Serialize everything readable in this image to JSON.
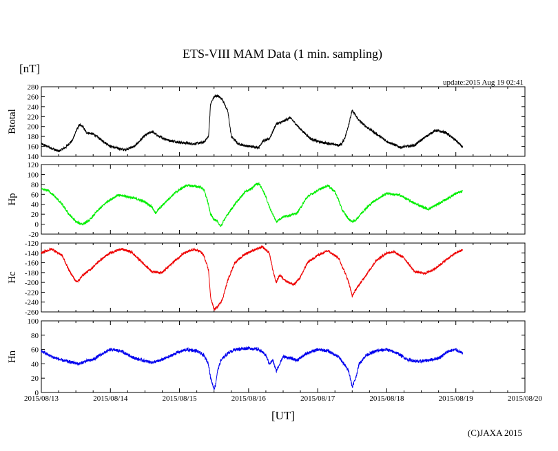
{
  "page": {
    "title": "ETS-VIII MAM Data (1 min. sampling)",
    "units_label": "[nT]",
    "update_text": "update:2015 Aug 19 02:41",
    "x_axis_label": "[UT]",
    "copyright": "(C)JAXA 2015"
  },
  "chart_data": [
    {
      "type": "line",
      "panel": "Btotal",
      "ylabel": "Btotal",
      "color": "#000000",
      "ylim": [
        140,
        280
      ],
      "yticks": [
        140,
        160,
        180,
        200,
        220,
        240,
        260,
        280
      ],
      "noise": 2.5,
      "x_days": [
        0,
        0.15,
        0.25,
        0.35,
        0.45,
        0.5,
        0.55,
        0.6,
        0.65,
        0.75,
        0.9,
        1.0,
        1.2,
        1.35,
        1.5,
        1.6,
        1.7,
        1.85,
        2.0,
        2.2,
        2.35,
        2.42,
        2.45,
        2.5,
        2.55,
        2.62,
        2.7,
        2.75,
        2.85,
        3.0,
        3.15,
        3.2,
        3.3,
        3.4,
        3.5,
        3.6,
        3.75,
        3.9,
        4.0,
        4.1,
        4.2,
        4.3,
        4.35,
        4.4,
        4.45,
        4.5,
        4.55,
        4.6,
        4.7,
        4.85,
        5.0,
        5.2,
        5.4,
        5.55,
        5.7,
        5.85,
        6.0,
        6.1
      ],
      "values": [
        165,
        156,
        150,
        158,
        172,
        190,
        203,
        200,
        188,
        185,
        170,
        160,
        153,
        160,
        182,
        190,
        180,
        172,
        168,
        165,
        168,
        180,
        245,
        260,
        262,
        255,
        230,
        180,
        165,
        160,
        158,
        170,
        175,
        205,
        210,
        218,
        195,
        175,
        170,
        167,
        165,
        162,
        165,
        180,
        205,
        232,
        222,
        212,
        200,
        185,
        170,
        158,
        162,
        178,
        192,
        188,
        172,
        158
      ]
    },
    {
      "type": "line",
      "panel": "Hp",
      "ylabel": "Hp",
      "color": "#00ee00",
      "ylim": [
        -20,
        120
      ],
      "yticks": [
        -20,
        0,
        20,
        40,
        60,
        80,
        100,
        120
      ],
      "noise": 2.5,
      "x_days": [
        0,
        0.1,
        0.2,
        0.3,
        0.4,
        0.5,
        0.55,
        0.6,
        0.7,
        0.8,
        0.95,
        1.1,
        1.2,
        1.35,
        1.5,
        1.6,
        1.65,
        1.7,
        1.8,
        1.95,
        2.1,
        2.3,
        2.35,
        2.4,
        2.45,
        2.5,
        2.55,
        2.6,
        2.65,
        2.7,
        2.8,
        2.95,
        3.05,
        3.1,
        3.15,
        3.2,
        3.25,
        3.3,
        3.4,
        3.5,
        3.6,
        3.7,
        3.85,
        4.0,
        4.15,
        4.25,
        4.3,
        4.35,
        4.45,
        4.5,
        4.55,
        4.65,
        4.8,
        5.0,
        5.2,
        5.4,
        5.6,
        5.8,
        6.0,
        6.1
      ],
      "values": [
        70,
        68,
        55,
        40,
        20,
        5,
        2,
        0,
        8,
        25,
        45,
        58,
        57,
        52,
        45,
        35,
        22,
        30,
        45,
        65,
        78,
        75,
        70,
        50,
        20,
        10,
        5,
        -5,
        10,
        20,
        40,
        65,
        72,
        80,
        82,
        70,
        55,
        35,
        5,
        15,
        18,
        22,
        55,
        68,
        78,
        65,
        50,
        30,
        10,
        5,
        8,
        25,
        45,
        62,
        58,
        42,
        30,
        45,
        62,
        66
      ]
    },
    {
      "type": "line",
      "panel": "Hc",
      "ylabel": "Hc",
      "color": "#ee0000",
      "ylim": [
        -260,
        -120
      ],
      "yticks": [
        -260,
        -240,
        -220,
        -200,
        -180,
        -160,
        -140,
        -120
      ],
      "noise": 2.5,
      "x_days": [
        0,
        0.15,
        0.3,
        0.4,
        0.5,
        0.55,
        0.6,
        0.65,
        0.7,
        0.85,
        1.0,
        1.15,
        1.3,
        1.45,
        1.6,
        1.75,
        1.9,
        2.05,
        2.2,
        2.3,
        2.35,
        2.42,
        2.45,
        2.5,
        2.55,
        2.62,
        2.7,
        2.8,
        2.95,
        3.1,
        3.2,
        3.3,
        3.35,
        3.4,
        3.45,
        3.55,
        3.65,
        3.75,
        3.85,
        4.0,
        4.15,
        4.3,
        4.38,
        4.45,
        4.5,
        4.55,
        4.6,
        4.7,
        4.85,
        5.0,
        5.1,
        5.25,
        5.4,
        5.55,
        5.7,
        5.85,
        6.0,
        6.1
      ],
      "values": [
        -140,
        -132,
        -145,
        -175,
        -198,
        -195,
        -185,
        -180,
        -175,
        -155,
        -140,
        -132,
        -138,
        -158,
        -178,
        -180,
        -160,
        -142,
        -133,
        -137,
        -145,
        -175,
        -230,
        -255,
        -250,
        -235,
        -195,
        -160,
        -142,
        -133,
        -128,
        -140,
        -175,
        -200,
        -185,
        -198,
        -205,
        -190,
        -160,
        -145,
        -135,
        -150,
        -175,
        -200,
        -228,
        -215,
        -205,
        -185,
        -155,
        -140,
        -138,
        -150,
        -178,
        -182,
        -172,
        -155,
        -140,
        -134
      ]
    },
    {
      "type": "line",
      "panel": "Hn",
      "ylabel": "Hn",
      "color": "#0000ee",
      "ylim": [
        0,
        100
      ],
      "yticks": [
        0,
        20,
        40,
        60,
        80,
        100
      ],
      "noise": 2.2,
      "x_days": [
        0,
        0.15,
        0.3,
        0.45,
        0.55,
        0.65,
        0.75,
        0.9,
        1.0,
        1.15,
        1.35,
        1.5,
        1.6,
        1.7,
        1.85,
        1.95,
        2.1,
        2.25,
        2.35,
        2.42,
        2.45,
        2.5,
        2.52,
        2.55,
        2.6,
        2.7,
        2.8,
        3.0,
        3.15,
        3.25,
        3.3,
        3.35,
        3.4,
        3.5,
        3.6,
        3.7,
        3.85,
        4.0,
        4.15,
        4.3,
        4.38,
        4.45,
        4.5,
        4.55,
        4.6,
        4.7,
        4.85,
        5.0,
        5.15,
        5.3,
        5.45,
        5.6,
        5.75,
        5.9,
        6.0,
        6.1
      ],
      "values": [
        58,
        50,
        45,
        42,
        40,
        44,
        46,
        55,
        60,
        58,
        48,
        44,
        42,
        44,
        50,
        55,
        60,
        58,
        52,
        40,
        20,
        5,
        10,
        30,
        45,
        55,
        60,
        62,
        60,
        52,
        40,
        45,
        30,
        50,
        48,
        45,
        55,
        60,
        58,
        50,
        40,
        30,
        8,
        20,
        40,
        52,
        58,
        60,
        55,
        46,
        43,
        45,
        48,
        58,
        60,
        54
      ]
    }
  ],
  "x_axis": {
    "tick_labels": [
      "2015/08/13",
      "2015/08/14",
      "2015/08/15",
      "2015/08/16",
      "2015/08/17",
      "2015/08/18",
      "2015/08/19",
      "2015/08/20"
    ],
    "days_range": [
      0,
      7
    ]
  }
}
